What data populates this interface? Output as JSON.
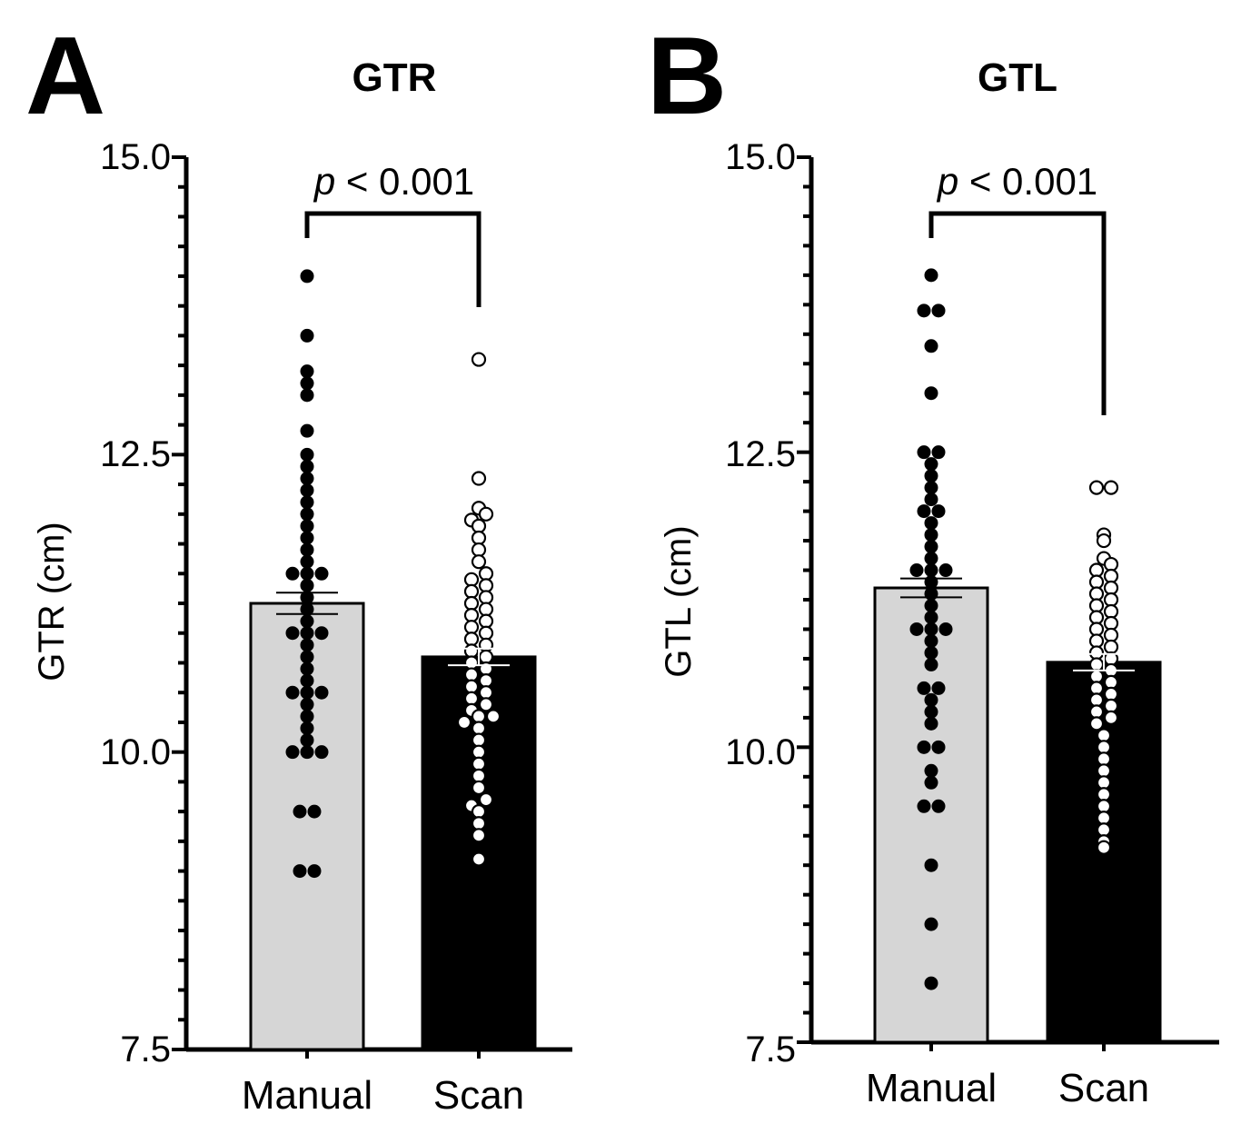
{
  "figure": {
    "panels": [
      {
        "letter": "A",
        "title": "GTR"
      },
      {
        "letter": "B",
        "title": "GTL"
      }
    ]
  },
  "colors": {
    "manual_bar": "#d6d6d6",
    "scan_bar": "#000000",
    "manual_dot": "#000000",
    "scan_dot_fill": "#ffffff",
    "axis": "#000000"
  },
  "chart_data": [
    {
      "type": "bar",
      "panel": "A",
      "title": "GTR",
      "ylabel": "GTR (cm)",
      "xlabel": "",
      "ylim": [
        7.5,
        15.0
      ],
      "yticks": [
        "7.5",
        "10.0",
        "12.5",
        "15.0"
      ],
      "categories": [
        "Manual",
        "Scan"
      ],
      "values": [
        11.25,
        10.8
      ],
      "errors": [
        0.09,
        0.07
      ],
      "significance": {
        "p_symbol": "p",
        "text": "< 0.001",
        "between": [
          "Manual",
          "Scan"
        ]
      },
      "points": {
        "Manual": [
          14.0,
          13.5,
          13.2,
          13.1,
          13.0,
          12.7,
          12.5,
          12.4,
          12.3,
          12.2,
          12.1,
          12.0,
          11.9,
          11.8,
          11.7,
          11.6,
          11.5,
          11.5,
          11.5,
          11.4,
          11.3,
          11.2,
          11.1,
          11.0,
          11.0,
          11.0,
          10.9,
          10.8,
          10.7,
          10.6,
          10.5,
          10.5,
          10.5,
          10.4,
          10.3,
          10.2,
          10.1,
          10.0,
          10.0,
          10.0,
          9.5,
          9.5,
          9.0,
          9.0
        ],
        "Scan": [
          13.3,
          12.3,
          12.05,
          12.0,
          11.95,
          11.9,
          11.8,
          11.7,
          11.6,
          11.5,
          11.45,
          11.4,
          11.35,
          11.3,
          11.25,
          11.2,
          11.15,
          11.1,
          11.05,
          11.0,
          10.95,
          10.9,
          10.85,
          10.8,
          10.75,
          10.7,
          10.65,
          10.6,
          10.55,
          10.5,
          10.45,
          10.4,
          10.35,
          10.3,
          10.3,
          10.25,
          10.2,
          10.1,
          10.0,
          9.9,
          9.8,
          9.7,
          9.6,
          9.55,
          9.5,
          9.4,
          9.3,
          9.1
        ]
      }
    },
    {
      "type": "bar",
      "panel": "B",
      "title": "GTL",
      "ylabel": "GTL (cm)",
      "xlabel": "",
      "ylim": [
        7.5,
        15.0
      ],
      "yticks": [
        "7.5",
        "10.0",
        "12.5",
        "15.0"
      ],
      "categories": [
        "Manual",
        "Scan"
      ],
      "values": [
        11.35,
        10.72
      ],
      "errors": [
        0.08,
        0.07
      ],
      "significance": {
        "p_symbol": "p",
        "text": "< 0.001",
        "between": [
          "Manual",
          "Scan"
        ]
      },
      "points": {
        "Manual": [
          14.0,
          13.7,
          13.7,
          13.4,
          13.0,
          12.5,
          12.5,
          12.4,
          12.3,
          12.2,
          12.1,
          12.0,
          12.0,
          11.9,
          11.8,
          11.7,
          11.6,
          11.5,
          11.5,
          11.5,
          11.4,
          11.3,
          11.2,
          11.1,
          11.0,
          11.0,
          11.0,
          10.9,
          10.8,
          10.7,
          10.5,
          10.5,
          10.4,
          10.3,
          10.2,
          10.0,
          10.0,
          9.8,
          9.7,
          9.5,
          9.5,
          9.0,
          8.5,
          8.0
        ],
        "Scan": [
          12.2,
          12.2,
          11.8,
          11.75,
          11.6,
          11.55,
          11.5,
          11.45,
          11.4,
          11.35,
          11.3,
          11.25,
          11.2,
          11.15,
          11.1,
          11.05,
          11.0,
          10.95,
          10.9,
          10.85,
          10.8,
          10.75,
          10.7,
          10.65,
          10.6,
          10.55,
          10.5,
          10.45,
          10.4,
          10.35,
          10.3,
          10.25,
          10.2,
          10.1,
          10.0,
          9.9,
          9.8,
          9.7,
          9.6,
          9.5,
          9.4,
          9.3,
          9.2,
          9.15
        ]
      }
    }
  ]
}
